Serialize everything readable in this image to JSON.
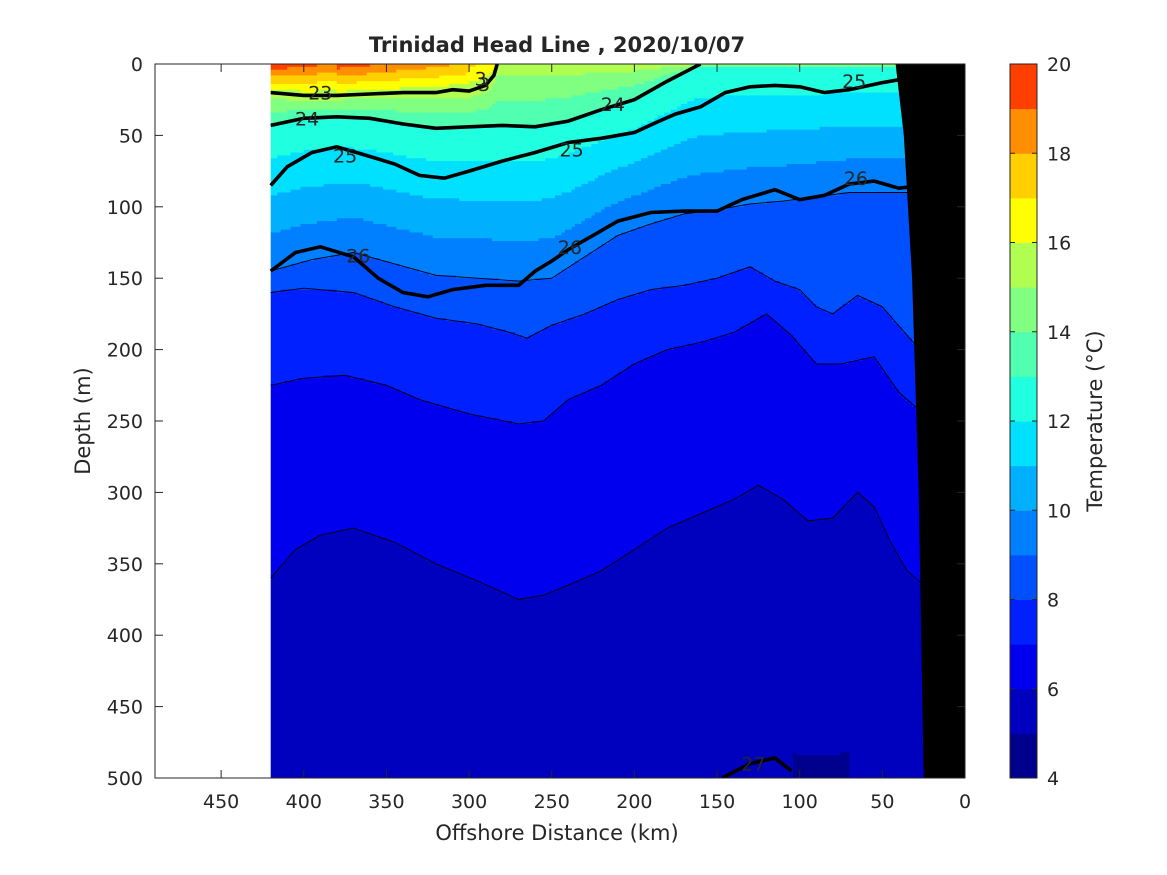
{
  "chart_data": {
    "type": "contour",
    "title": "Trinidad Head Line , 2020/10/07",
    "xlabel": "Offshore Distance (km)",
    "ylabel": "Depth (m)",
    "xlim": [
      490,
      0
    ],
    "ylim": [
      0,
      500
    ],
    "x_reversed": true,
    "y_reversed": true,
    "xticks": [
      450,
      400,
      350,
      300,
      250,
      200,
      150,
      100,
      50,
      0
    ],
    "yticks": [
      0,
      50,
      100,
      150,
      200,
      250,
      300,
      350,
      400,
      450,
      500
    ],
    "data_extent_km": [
      420,
      10
    ],
    "colorbar": {
      "label": "Temperature (°C)",
      "ticks": [
        4,
        6,
        8,
        10,
        12,
        14,
        16,
        18,
        20
      ],
      "range": [
        4,
        20
      ],
      "levels": [
        4,
        5,
        6,
        7,
        8,
        9,
        10,
        11,
        12,
        13,
        14,
        15,
        16,
        17,
        18,
        19,
        20
      ],
      "colors": [
        "#00008F",
        "#0000BF",
        "#0000EF",
        "#0020FF",
        "#0050FF",
        "#0080FF",
        "#00B0FF",
        "#00E0FF",
        "#20FFDF",
        "#50FFAF",
        "#80FF80",
        "#B0FF50",
        "#FFFF00",
        "#FFCF00",
        "#FF8F00",
        "#FF3F00",
        "#CF0000",
        "#AA0000"
      ]
    },
    "temperature_contours": [
      {
        "temp": 9,
        "points": [
          [
            420,
            145
          ],
          [
            395,
            137
          ],
          [
            370,
            132
          ],
          [
            345,
            140
          ],
          [
            320,
            148
          ],
          [
            295,
            150
          ],
          [
            270,
            152
          ],
          [
            250,
            150
          ],
          [
            230,
            135
          ],
          [
            210,
            120
          ],
          [
            190,
            112
          ],
          [
            170,
            105
          ],
          [
            150,
            102
          ],
          [
            130,
            98
          ],
          [
            110,
            96
          ],
          [
            90,
            93
          ],
          [
            70,
            90
          ],
          [
            50,
            90
          ],
          [
            30,
            90
          ],
          [
            15,
            85
          ]
        ]
      },
      {
        "temp": 8,
        "points": [
          [
            420,
            160
          ],
          [
            400,
            157
          ],
          [
            370,
            160
          ],
          [
            345,
            170
          ],
          [
            320,
            178
          ],
          [
            295,
            182
          ],
          [
            275,
            188
          ],
          [
            265,
            192
          ],
          [
            250,
            183
          ],
          [
            230,
            175
          ],
          [
            210,
            165
          ],
          [
            190,
            158
          ],
          [
            170,
            155
          ],
          [
            150,
            150
          ],
          [
            130,
            142
          ],
          [
            115,
            152
          ],
          [
            100,
            158
          ],
          [
            90,
            170
          ],
          [
            80,
            175
          ],
          [
            65,
            162
          ],
          [
            50,
            170
          ],
          [
            35,
            190
          ],
          [
            20,
            210
          ]
        ]
      },
      {
        "temp": 7,
        "points": [
          [
            420,
            225
          ],
          [
            400,
            220
          ],
          [
            375,
            218
          ],
          [
            350,
            225
          ],
          [
            330,
            235
          ],
          [
            300,
            245
          ],
          [
            270,
            252
          ],
          [
            255,
            250
          ],
          [
            240,
            235
          ],
          [
            220,
            225
          ],
          [
            200,
            210
          ],
          [
            180,
            200
          ],
          [
            160,
            195
          ],
          [
            140,
            188
          ],
          [
            120,
            175
          ],
          [
            105,
            190
          ],
          [
            90,
            210
          ],
          [
            75,
            210
          ],
          [
            55,
            205
          ],
          [
            40,
            230
          ],
          [
            25,
            245
          ]
        ]
      },
      {
        "temp": 6,
        "points": [
          [
            420,
            360
          ],
          [
            405,
            340
          ],
          [
            390,
            330
          ],
          [
            370,
            325
          ],
          [
            345,
            335
          ],
          [
            320,
            350
          ],
          [
            295,
            362
          ],
          [
            270,
            375
          ],
          [
            255,
            372
          ],
          [
            240,
            365
          ],
          [
            220,
            355
          ],
          [
            200,
            340
          ],
          [
            180,
            325
          ],
          [
            160,
            315
          ],
          [
            140,
            305
          ],
          [
            125,
            295
          ],
          [
            110,
            305
          ],
          [
            95,
            320
          ],
          [
            80,
            318
          ],
          [
            65,
            300
          ],
          [
            55,
            310
          ],
          [
            45,
            335
          ],
          [
            35,
            355
          ],
          [
            25,
            365
          ]
        ]
      }
    ],
    "density_contours": [
      {
        "label": "23",
        "points": [
          [
            420,
            20
          ],
          [
            400,
            22
          ],
          [
            380,
            22
          ],
          [
            360,
            21
          ],
          [
            340,
            20
          ],
          [
            320,
            20
          ],
          [
            310,
            18
          ],
          [
            300,
            19
          ],
          [
            290,
            15
          ],
          [
            285,
            8
          ],
          [
            283,
            0
          ]
        ]
      },
      {
        "label": "24",
        "points": [
          [
            420,
            43
          ],
          [
            400,
            38
          ],
          [
            380,
            37
          ],
          [
            360,
            38
          ],
          [
            340,
            42
          ],
          [
            320,
            45
          ],
          [
            300,
            44
          ],
          [
            280,
            43
          ],
          [
            260,
            44
          ],
          [
            240,
            40
          ],
          [
            220,
            32
          ],
          [
            200,
            25
          ],
          [
            180,
            12
          ],
          [
            165,
            3
          ],
          [
            160,
            0
          ]
        ]
      },
      {
        "label": "25",
        "points": [
          [
            420,
            85
          ],
          [
            410,
            72
          ],
          [
            395,
            62
          ],
          [
            380,
            58
          ],
          [
            365,
            63
          ],
          [
            345,
            70
          ],
          [
            330,
            78
          ],
          [
            315,
            80
          ],
          [
            300,
            75
          ],
          [
            280,
            68
          ],
          [
            260,
            62
          ],
          [
            240,
            55
          ],
          [
            220,
            52
          ],
          [
            200,
            48
          ],
          [
            185,
            40
          ],
          [
            175,
            35
          ],
          [
            160,
            30
          ],
          [
            145,
            20
          ],
          [
            130,
            16
          ],
          [
            115,
            15
          ],
          [
            100,
            16
          ],
          [
            85,
            20
          ],
          [
            70,
            18
          ],
          [
            50,
            13
          ],
          [
            35,
            10
          ],
          [
            20,
            7
          ],
          [
            10,
            3
          ]
        ]
      },
      {
        "label": "26",
        "points": [
          [
            420,
            145
          ],
          [
            405,
            132
          ],
          [
            390,
            128
          ],
          [
            370,
            135
          ],
          [
            355,
            150
          ],
          [
            340,
            160
          ],
          [
            325,
            163
          ],
          [
            310,
            158
          ],
          [
            290,
            155
          ],
          [
            270,
            155
          ],
          [
            260,
            145
          ],
          [
            250,
            138
          ],
          [
            240,
            130
          ],
          [
            225,
            120
          ],
          [
            210,
            110
          ],
          [
            190,
            104
          ],
          [
            170,
            103
          ],
          [
            150,
            103
          ],
          [
            135,
            95
          ],
          [
            115,
            88
          ],
          [
            100,
            95
          ],
          [
            85,
            92
          ],
          [
            70,
            84
          ],
          [
            55,
            82
          ],
          [
            40,
            87
          ],
          [
            25,
            85
          ],
          [
            15,
            78
          ]
        ]
      },
      {
        "label": "27",
        "points": [
          [
            147,
            500
          ],
          [
            130,
            490
          ],
          [
            115,
            486
          ],
          [
            105,
            495
          ]
        ]
      }
    ],
    "sigma_labels": [
      {
        "text": "23",
        "at": [
          390,
          20
        ]
      },
      {
        "text": "24",
        "at": [
          398,
          38
        ]
      },
      {
        "text": "24",
        "at": [
          213,
          28
        ]
      },
      {
        "text": "25",
        "at": [
          375,
          64
        ]
      },
      {
        "text": "25",
        "at": [
          238,
          60
        ]
      },
      {
        "text": "25",
        "at": [
          67,
          12
        ]
      },
      {
        "text": "26",
        "at": [
          367,
          134
        ]
      },
      {
        "text": "26",
        "at": [
          239,
          128
        ]
      },
      {
        "text": "26",
        "at": [
          66,
          80
        ]
      },
      {
        "text": "27",
        "at": [
          128,
          490
        ]
      },
      {
        "text": "3",
        "at": [
          293,
          10
        ]
      },
      {
        "text": "3",
        "at": [
          291,
          14
        ]
      }
    ],
    "bathymetry": [
      [
        25,
        500
      ],
      [
        28,
        300
      ],
      [
        32,
        150
      ],
      [
        37,
        50
      ],
      [
        42,
        0
      ]
    ],
    "bathymetry_color": "#000000"
  }
}
